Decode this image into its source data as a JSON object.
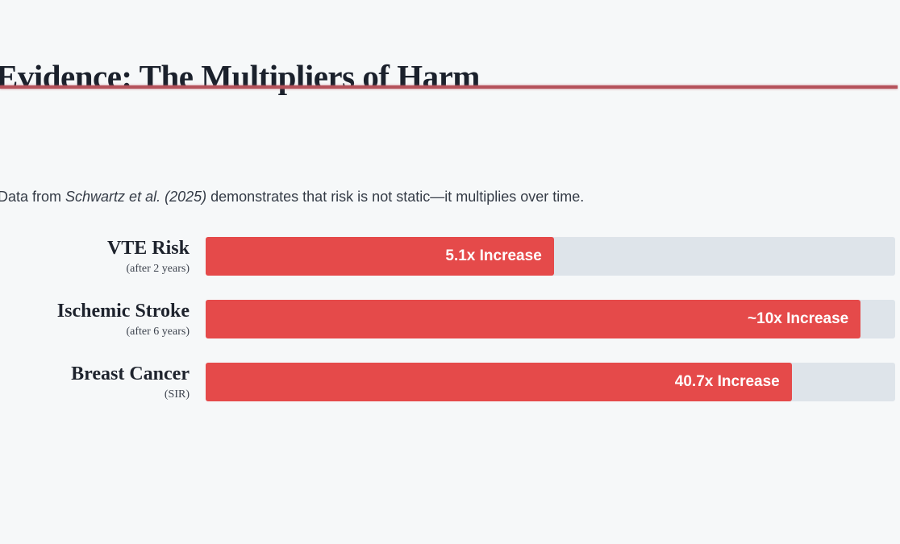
{
  "slide": {
    "title": "Evidence: The Multipliers of Harm",
    "subtitle": {
      "prefix": "Data from ",
      "citation": "Schwartz et al. (2025)",
      "suffix": " demonstrates that risk is not static—it multiplies over time."
    },
    "accent_color": "#b5525b",
    "background_color": "#f6f8f9"
  },
  "chart_data": {
    "type": "bar",
    "orientation": "horizontal",
    "title": "Evidence: The Multipliers of Harm",
    "categories": [
      "VTE Risk",
      "Ischemic Stroke",
      "Breast Cancer"
    ],
    "category_qualifiers": [
      "(after 2 years)",
      "(after 6 years)",
      "(SIR)"
    ],
    "values": [
      5.1,
      10,
      40.7
    ],
    "value_labels": [
      "5.1x Increase",
      "~10x Increase",
      "40.7x Increase"
    ],
    "bar_percent": [
      50.5,
      95,
      85
    ],
    "bar_color": "#e54a4a",
    "track_color": "#dee4ea",
    "value_label_color": "#ffffff",
    "legend": false,
    "grid": false,
    "axis_labels": false
  }
}
